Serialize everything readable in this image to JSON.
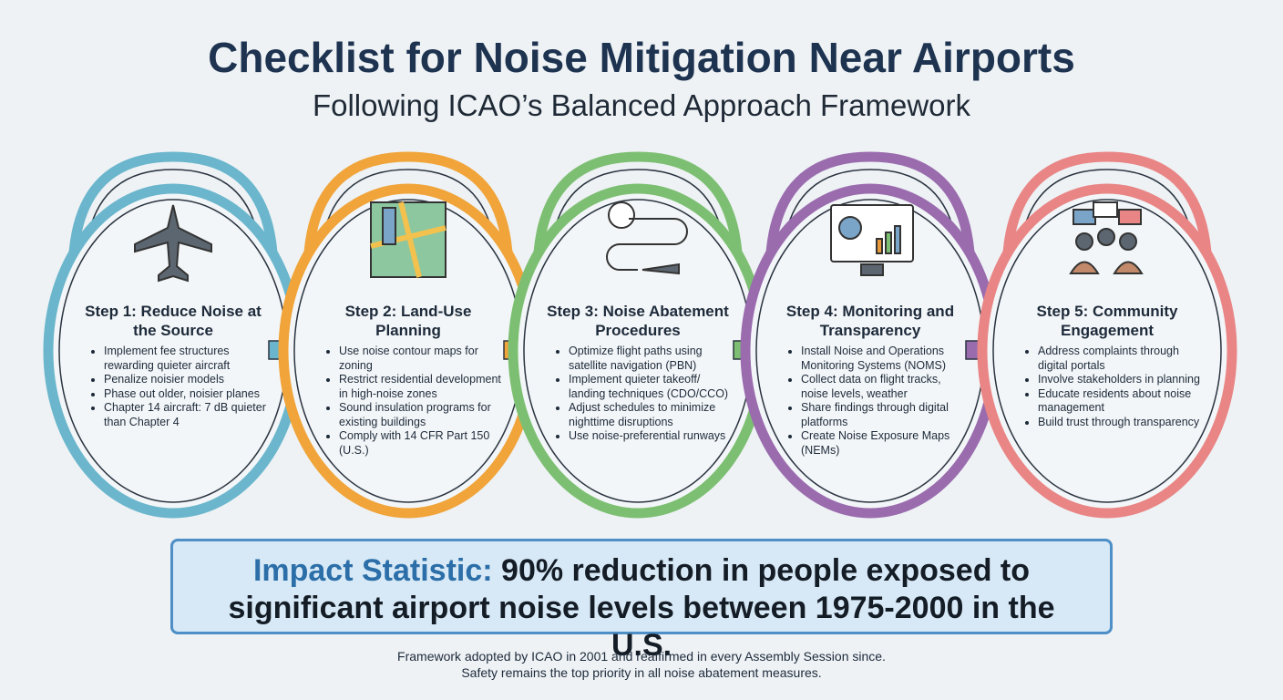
{
  "header": {
    "title": "Checklist for Noise Mitigation Near Airports",
    "subtitle": "Following ICAO’s Balanced Approach Framework"
  },
  "steps": [
    {
      "title": "Step 1: Reduce Noise at the Source",
      "color": "#6bb6cc",
      "items": [
        "Implement fee structures rewarding quieter aircraft",
        "Penalize noisier models",
        "Phase out older, noisier planes",
        "Chapter 14 aircraft: 7 dB quieter than Chapter 4"
      ]
    },
    {
      "title": "Step 2: Land-Use Planning",
      "color": "#f0a43a",
      "items": [
        "Use noise contour maps for zoning",
        "Restrict residential development in high-noise zones",
        "Sound insulation programs for existing buildings",
        "Comply with 14 CFR Part 150 (U.S.)"
      ]
    },
    {
      "title": "Step 3: Noise Abatement Procedures",
      "color": "#7dbf72",
      "items": [
        "Optimize flight paths using satellite navigation (PBN)",
        "Implement quieter takeoff/ landing techniques (CDO/CCO)",
        "Adjust schedules to minimize nighttime disruptions",
        "Use noise-preferential runways"
      ]
    },
    {
      "title": "Step 4: Monitoring and Transparency",
      "color": "#9a6cae",
      "items": [
        "Install Noise and Operations Monitoring Systems (NOMS)",
        "Collect data on flight tracks, noise levels, weather",
        "Share findings through digital platforms",
        "Create Noise Exposure Maps (NEMs)"
      ]
    },
    {
      "title": "Step 5: Community Engagement",
      "color": "#e98585",
      "items": [
        "Address complaints through digital portals",
        "Involve stakeholders in planning",
        "Educate residents about noise management",
        "Build trust through transparency"
      ]
    }
  ],
  "impact": {
    "label": "Impact Statistic:",
    "text": "90% reduction in people exposed to significant airport noise levels between 1975-2000 in the U.S."
  },
  "footer": {
    "line1": "Framework adopted by ICAO in 2001 and reaffirmed in every Assembly Session since.",
    "line2": "Safety remains the top priority in all noise abatement measures."
  }
}
